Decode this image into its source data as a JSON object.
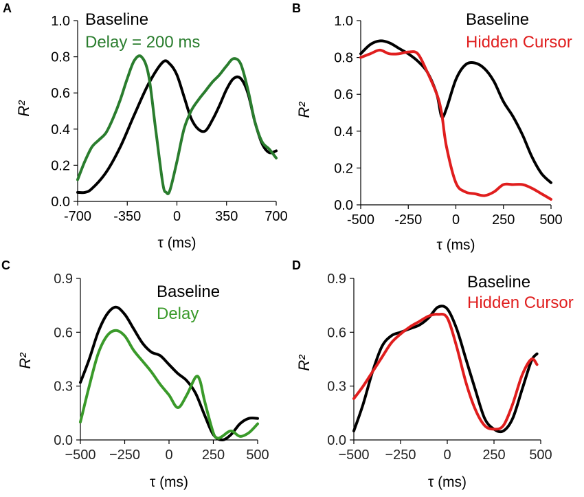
{
  "chart_data": [
    {
      "panel": "A",
      "type": "line",
      "xlabel": "τ (ms)",
      "ylabel": "R²",
      "xlim": [
        -700,
        700
      ],
      "ylim": [
        0.0,
        1.0
      ],
      "xticks": [
        -700,
        -350,
        0,
        350,
        700
      ],
      "xtick_labels": [
        "-700",
        "-350",
        "0",
        "350",
        "700"
      ],
      "yticks": [
        0.0,
        0.2,
        0.4,
        0.6,
        0.8,
        1.0
      ],
      "ytick_labels": [
        "0.0",
        "0.2",
        "0.4",
        "0.6",
        "0.8",
        "1.0"
      ],
      "legend_position": "top-left",
      "series": [
        {
          "name": "Baseline",
          "color": "#000000",
          "x": [
            -700,
            -650,
            -600,
            -500,
            -400,
            -300,
            -200,
            -100,
            -50,
            0,
            50,
            100,
            150,
            200,
            250,
            300,
            350,
            400,
            450,
            500,
            550,
            600,
            650,
            700
          ],
          "y": [
            0.05,
            0.05,
            0.07,
            0.16,
            0.3,
            0.48,
            0.65,
            0.77,
            0.76,
            0.7,
            0.58,
            0.46,
            0.4,
            0.39,
            0.45,
            0.53,
            0.62,
            0.68,
            0.68,
            0.6,
            0.44,
            0.32,
            0.27,
            0.28
          ]
        },
        {
          "name": "Delay = 200 ms",
          "color": "#2a7d2e",
          "x": [
            -700,
            -650,
            -600,
            -550,
            -500,
            -450,
            -400,
            -350,
            -300,
            -250,
            -200,
            -150,
            -100,
            -75,
            -50,
            0,
            50,
            100,
            150,
            200,
            250,
            300,
            350,
            400,
            450,
            500,
            550,
            600,
            650,
            700
          ],
          "y": [
            0.12,
            0.22,
            0.3,
            0.34,
            0.38,
            0.46,
            0.56,
            0.68,
            0.78,
            0.8,
            0.7,
            0.4,
            0.1,
            0.05,
            0.06,
            0.22,
            0.4,
            0.5,
            0.56,
            0.61,
            0.66,
            0.7,
            0.75,
            0.79,
            0.76,
            0.62,
            0.44,
            0.33,
            0.29,
            0.24
          ]
        }
      ]
    },
    {
      "panel": "B",
      "type": "line",
      "xlabel": "τ (ms)",
      "ylabel": "R²",
      "xlim": [
        -500,
        500
      ],
      "ylim": [
        0.0,
        1.0
      ],
      "xticks": [
        -500,
        -250,
        0,
        250,
        500
      ],
      "xtick_labels": [
        "-500",
        "-250",
        "0",
        "250",
        "500"
      ],
      "yticks": [
        0.0,
        0.2,
        0.4,
        0.6,
        0.8,
        1.0
      ],
      "ytick_labels": [
        "0.0",
        "0.2",
        "0.4",
        "0.6",
        "0.8",
        "1.0"
      ],
      "legend_position": "top-right",
      "series": [
        {
          "name": "Baseline",
          "color": "#000000",
          "x": [
            -500,
            -450,
            -400,
            -350,
            -300,
            -250,
            -200,
            -150,
            -100,
            -75,
            -50,
            0,
            50,
            100,
            150,
            200,
            250,
            300,
            350,
            400,
            450,
            500
          ],
          "y": [
            0.82,
            0.87,
            0.89,
            0.88,
            0.85,
            0.82,
            0.78,
            0.72,
            0.6,
            0.48,
            0.52,
            0.68,
            0.76,
            0.77,
            0.74,
            0.67,
            0.56,
            0.48,
            0.38,
            0.26,
            0.17,
            0.12
          ]
        },
        {
          "name": "Hidden Cursor",
          "color": "#e01e1e",
          "x": [
            -500,
            -450,
            -400,
            -350,
            -300,
            -250,
            -200,
            -150,
            -100,
            -75,
            -50,
            0,
            50,
            100,
            150,
            200,
            250,
            300,
            350,
            400,
            450,
            500
          ],
          "y": [
            0.8,
            0.82,
            0.84,
            0.82,
            0.82,
            0.83,
            0.82,
            0.72,
            0.6,
            0.5,
            0.32,
            0.12,
            0.07,
            0.06,
            0.05,
            0.07,
            0.11,
            0.11,
            0.11,
            0.09,
            0.06,
            0.03
          ]
        }
      ]
    },
    {
      "panel": "C",
      "type": "line",
      "xlabel": "τ (ms)",
      "ylabel": "R²",
      "xlim": [
        -500,
        500
      ],
      "ylim": [
        0.0,
        0.9
      ],
      "xticks": [
        -500,
        -250,
        0,
        250,
        500
      ],
      "xtick_labels": [
        "−500",
        "−250",
        "0",
        "250",
        "500"
      ],
      "yticks": [
        0.0,
        0.3,
        0.6,
        0.9
      ],
      "ytick_labels": [
        "0.0",
        "0.3",
        "0.6",
        "0.9"
      ],
      "legend_position": "top-right",
      "series": [
        {
          "name": "Baseline",
          "color": "#000000",
          "x": [
            -500,
            -450,
            -400,
            -350,
            -300,
            -250,
            -200,
            -150,
            -100,
            -50,
            0,
            50,
            100,
            150,
            200,
            250,
            300,
            350,
            400,
            450,
            500
          ],
          "y": [
            0.32,
            0.45,
            0.6,
            0.7,
            0.74,
            0.7,
            0.62,
            0.54,
            0.49,
            0.47,
            0.42,
            0.37,
            0.33,
            0.26,
            0.14,
            0.03,
            0.0,
            0.03,
            0.09,
            0.12,
            0.12
          ]
        },
        {
          "name": "Delay",
          "color": "#3a9a2a",
          "x": [
            -500,
            -450,
            -400,
            -350,
            -300,
            -250,
            -200,
            -150,
            -100,
            -50,
            0,
            50,
            100,
            150,
            175,
            200,
            250,
            275,
            300,
            350,
            400,
            450,
            500
          ],
          "y": [
            0.1,
            0.3,
            0.48,
            0.58,
            0.61,
            0.58,
            0.5,
            0.44,
            0.38,
            0.31,
            0.25,
            0.18,
            0.25,
            0.35,
            0.33,
            0.22,
            0.04,
            0.01,
            0.02,
            0.05,
            0.02,
            0.04,
            0.09
          ]
        }
      ]
    },
    {
      "panel": "D",
      "type": "line",
      "xlabel": "τ (ms)",
      "ylabel": "R²",
      "xlim": [
        -500,
        500
      ],
      "ylim": [
        0.0,
        0.9
      ],
      "xticks": [
        -500,
        -250,
        0,
        250,
        500
      ],
      "xtick_labels": [
        "−500",
        "−250",
        "0",
        "250",
        "500"
      ],
      "yticks": [
        0.0,
        0.3,
        0.6,
        0.9
      ],
      "ytick_labels": [
        "0.0",
        "0.3",
        "0.6",
        "0.9"
      ],
      "legend_position": "top-right",
      "series": [
        {
          "name": "Baseline",
          "color": "#000000",
          "x": [
            -500,
            -450,
            -400,
            -350,
            -300,
            -250,
            -200,
            -150,
            -100,
            -50,
            0,
            50,
            100,
            150,
            200,
            250,
            300,
            350,
            400,
            450,
            480
          ],
          "y": [
            0.05,
            0.2,
            0.38,
            0.52,
            0.58,
            0.6,
            0.62,
            0.64,
            0.68,
            0.74,
            0.73,
            0.62,
            0.45,
            0.28,
            0.12,
            0.06,
            0.05,
            0.12,
            0.28,
            0.44,
            0.48
          ]
        },
        {
          "name": "Hidden Cursor",
          "color": "#e01e1e",
          "x": [
            -500,
            -450,
            -400,
            -350,
            -300,
            -250,
            -200,
            -150,
            -100,
            -50,
            0,
            50,
            100,
            150,
            200,
            250,
            300,
            350,
            400,
            450,
            480
          ],
          "y": [
            0.23,
            0.3,
            0.38,
            0.46,
            0.54,
            0.59,
            0.63,
            0.66,
            0.69,
            0.7,
            0.68,
            0.52,
            0.32,
            0.17,
            0.08,
            0.06,
            0.08,
            0.2,
            0.36,
            0.45,
            0.42
          ]
        }
      ]
    }
  ]
}
